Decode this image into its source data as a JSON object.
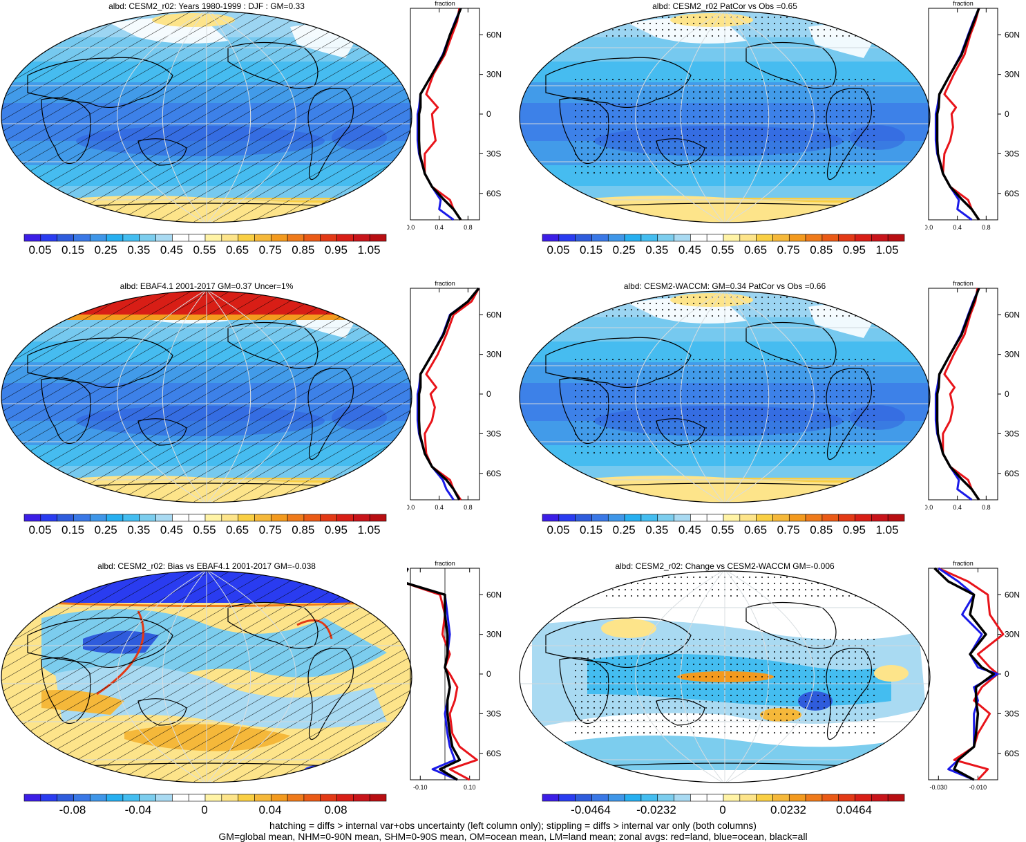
{
  "panels": [
    {
      "title": "albd: CESM2_r02: Years 1980-1999 : DJF : GM=0.33",
      "kind": "mean",
      "hatch": "lines",
      "redCap": false,
      "blueCap": false
    },
    {
      "title": "albd: CESM2_r02 PatCor vs Obs =0.65",
      "kind": "mean",
      "hatch": "dots",
      "redCap": false,
      "blueCap": false
    },
    {
      "title": "albd: EBAF4.1 2001-2017 GM=0.37 Uncer=1%",
      "kind": "mean",
      "hatch": "lines",
      "redCap": true,
      "blueCap": false
    },
    {
      "title": "albd: CESM2-WACCM: GM=0.34 PatCor vs Obs =0.66",
      "kind": "mean",
      "hatch": "dots",
      "redCap": false,
      "blueCap": false
    },
    {
      "title": "albd: CESM2_r02: Bias vs EBAF4.1 2001-2017 GM=-0.038",
      "kind": "diff",
      "hatch": "lines",
      "redCap": false,
      "blueCap": true
    },
    {
      "title": "albd: CESM2_r02: Change vs CESM2-WACCM GM=-0.006",
      "kind": "diff",
      "hatch": "dots",
      "redCap": false,
      "blueCap": false
    }
  ],
  "colorbars": {
    "mean_labels": [
      "0.05",
      "0.15",
      "0.25",
      "0.35",
      "0.45",
      "0.55",
      "0.65",
      "0.75",
      "0.85",
      "0.95",
      "1.05"
    ],
    "bias_labels": [
      "-0.08",
      "-0.04",
      "0",
      "0.04",
      "0.08"
    ],
    "change_labels": [
      "-0.0464",
      "-0.0232",
      "0",
      "0.0232",
      "0.0464"
    ],
    "colors": [
      "#3c1ee6",
      "#2a3cf0",
      "#2f5cdc",
      "#3a78e6",
      "#3f96e8",
      "#27aff0",
      "#44bdf0",
      "#7ccdee",
      "#a9daf2",
      "#ffffff",
      "#ffffff",
      "#fff3a6",
      "#fde48a",
      "#f9cf44",
      "#f5b83a",
      "#f39a1e",
      "#ef7a1a",
      "#ea5a16",
      "#e33a16",
      "#d81e16",
      "#c8141a",
      "#b80e12"
    ]
  },
  "zonal_axes": {
    "title": "fraction",
    "lat_labels": [
      "60N",
      "30N",
      "0",
      "30S",
      "60S"
    ],
    "mean_x": [
      "0.0",
      "0.4",
      "0.8"
    ],
    "bias_x": [
      "-0.10",
      "0.10"
    ],
    "change_x": [
      "-0.030",
      "-0.010"
    ]
  },
  "legend": {
    "land": "#e8141a",
    "ocean": "#1a1ae8",
    "all": "#000000"
  },
  "footer": {
    "line1": "hatching = diffs > internal var+obs uncertainty (left column only); stippling = diffs > internal var only (both columns)",
    "line2": "GM=global mean, NHM=0-90N mean, SHM=0-90S mean, OM=ocean mean, LM=land mean; zonal avgs: red=land, blue=ocean, black=all"
  },
  "chart_data": [
    {
      "type": "heatmap",
      "title": "albd: CESM2_r02: Years 1980-1999 : DJF : GM=0.33",
      "xlabel": "",
      "ylabel": "",
      "colorbar_ticks": [
        0.05,
        0.15,
        0.25,
        0.35,
        0.45,
        0.55,
        0.65,
        0.75,
        0.85,
        0.95,
        1.05
      ],
      "zonal_profile": {
        "lat": [
          80,
          70,
          60,
          45,
          30,
          15,
          5,
          0,
          -10,
          -20,
          -30,
          -45,
          -55,
          -65,
          -72,
          -80
        ],
        "land": [
          0.68,
          0.65,
          0.58,
          0.48,
          0.32,
          0.22,
          0.38,
          0.3,
          0.32,
          0.35,
          0.2,
          0.2,
          0.3,
          0.55,
          0.6,
          0.7
        ],
        "ocean": [
          0.7,
          0.62,
          0.55,
          0.45,
          0.3,
          0.14,
          0.12,
          0.1,
          0.1,
          0.1,
          0.12,
          0.2,
          0.3,
          0.42,
          0.4,
          0.6
        ],
        "all": [
          0.7,
          0.63,
          0.55,
          0.46,
          0.3,
          0.14,
          0.14,
          0.12,
          0.12,
          0.12,
          0.13,
          0.2,
          0.3,
          0.47,
          0.6,
          0.7
        ],
        "xlim": [
          0,
          0.8
        ]
      }
    },
    {
      "type": "heatmap",
      "title": "albd: CESM2_r02 PatCor vs Obs =0.65",
      "xlabel": "",
      "ylabel": "",
      "colorbar_ticks": [
        0.05,
        0.15,
        0.25,
        0.35,
        0.45,
        0.55,
        0.65,
        0.75,
        0.85,
        0.95,
        1.05
      ],
      "zonal_profile": {
        "lat": [
          80,
          70,
          60,
          45,
          30,
          15,
          5,
          0,
          -10,
          -20,
          -30,
          -45,
          -55,
          -65,
          -72,
          -80
        ],
        "land": [
          0.7,
          0.65,
          0.58,
          0.5,
          0.35,
          0.22,
          0.38,
          0.32,
          0.34,
          0.3,
          0.22,
          0.2,
          0.3,
          0.55,
          0.6,
          0.7
        ],
        "ocean": [
          0.7,
          0.62,
          0.55,
          0.45,
          0.3,
          0.15,
          0.12,
          0.1,
          0.1,
          0.1,
          0.12,
          0.2,
          0.3,
          0.42,
          0.4,
          0.6
        ],
        "all": [
          0.7,
          0.63,
          0.56,
          0.46,
          0.3,
          0.15,
          0.14,
          0.12,
          0.12,
          0.12,
          0.13,
          0.2,
          0.3,
          0.47,
          0.6,
          0.7
        ],
        "xlim": [
          0,
          0.8
        ]
      }
    },
    {
      "type": "heatmap",
      "title": "albd: EBAF4.1 2001-2017 GM=0.37 Uncer=1%",
      "xlabel": "",
      "ylabel": "",
      "colorbar_ticks": [
        0.05,
        0.15,
        0.25,
        0.35,
        0.45,
        0.55,
        0.65,
        0.75,
        0.85,
        0.95,
        1.05
      ],
      "zonal_profile": {
        "lat": [
          80,
          70,
          60,
          45,
          30,
          15,
          5,
          0,
          -10,
          -20,
          -30,
          -45,
          -55,
          -65,
          -72,
          -80
        ],
        "land": [
          0.95,
          0.85,
          0.6,
          0.5,
          0.38,
          0.22,
          0.36,
          0.28,
          0.34,
          0.3,
          0.2,
          0.22,
          0.3,
          0.55,
          0.6,
          0.7
        ],
        "ocean": [
          0.95,
          0.8,
          0.55,
          0.45,
          0.3,
          0.14,
          0.12,
          0.1,
          0.1,
          0.1,
          0.12,
          0.2,
          0.3,
          0.45,
          0.5,
          0.6
        ],
        "all": [
          0.95,
          0.8,
          0.56,
          0.46,
          0.3,
          0.14,
          0.14,
          0.12,
          0.12,
          0.12,
          0.13,
          0.2,
          0.3,
          0.5,
          0.6,
          0.68
        ],
        "xlim": [
          0,
          0.8
        ]
      }
    },
    {
      "type": "heatmap",
      "title": "albd: CESM2-WACCM: GM=0.34 PatCor vs Obs =0.66",
      "xlabel": "",
      "ylabel": "",
      "colorbar_ticks": [
        0.05,
        0.15,
        0.25,
        0.35,
        0.45,
        0.55,
        0.65,
        0.75,
        0.85,
        0.95,
        1.05
      ],
      "zonal_profile": {
        "lat": [
          80,
          70,
          60,
          45,
          30,
          15,
          5,
          0,
          -10,
          -20,
          -30,
          -45,
          -55,
          -65,
          -72,
          -80
        ],
        "land": [
          0.68,
          0.65,
          0.58,
          0.5,
          0.35,
          0.22,
          0.36,
          0.3,
          0.34,
          0.3,
          0.2,
          0.2,
          0.3,
          0.55,
          0.6,
          0.7
        ],
        "ocean": [
          0.7,
          0.62,
          0.55,
          0.45,
          0.3,
          0.15,
          0.12,
          0.1,
          0.1,
          0.1,
          0.12,
          0.2,
          0.3,
          0.42,
          0.4,
          0.6
        ],
        "all": [
          0.7,
          0.63,
          0.56,
          0.46,
          0.3,
          0.15,
          0.14,
          0.12,
          0.12,
          0.12,
          0.13,
          0.2,
          0.3,
          0.47,
          0.6,
          0.7
        ],
        "xlim": [
          0,
          0.8
        ]
      }
    },
    {
      "type": "heatmap",
      "title": "albd: CESM2_r02: Bias vs EBAF4.1 2001-2017 GM=-0.038",
      "xlabel": "",
      "ylabel": "",
      "colorbar_ticks": [
        -0.08,
        -0.04,
        0,
        0.04,
        0.08
      ],
      "zonal_profile": {
        "lat": [
          80,
          70,
          60,
          45,
          30,
          15,
          5,
          0,
          -10,
          -20,
          -30,
          -45,
          -55,
          -65,
          -72,
          -80
        ],
        "land": [
          -0.15,
          -0.18,
          -0.02,
          0.0,
          -0.01,
          0.02,
          0.0,
          0.02,
          0.05,
          0.04,
          0.02,
          0.03,
          0.06,
          0.13,
          0.02,
          0.1
        ],
        "ocean": [
          -0.15,
          -0.18,
          0.0,
          0.01,
          0.02,
          0.01,
          0.0,
          0.01,
          0.02,
          0.01,
          0.0,
          0.01,
          0.02,
          0.04,
          -0.05,
          0.05
        ],
        "all": [
          -0.15,
          -0.18,
          0.0,
          0.0,
          0.01,
          0.01,
          0.0,
          0.01,
          0.02,
          0.01,
          0.01,
          0.02,
          0.03,
          0.06,
          -0.02,
          0.05
        ],
        "xlim": [
          -0.15,
          0.15
        ]
      }
    },
    {
      "type": "heatmap",
      "title": "albd: CESM2_r02: Change vs CESM2-WACCM GM=-0.006",
      "xlabel": "",
      "ylabel": "",
      "colorbar_ticks": [
        -0.0464,
        -0.0232,
        0,
        0.0232,
        0.0464
      ],
      "zonal_profile": {
        "lat": [
          80,
          70,
          60,
          45,
          30,
          15,
          5,
          0,
          -10,
          -20,
          -30,
          -45,
          -55,
          -65,
          -72,
          -80
        ],
        "land": [
          -0.03,
          -0.015,
          -0.005,
          -0.004,
          0.006,
          -0.01,
          -0.004,
          0.0,
          -0.008,
          -0.012,
          -0.004,
          -0.01,
          -0.012,
          -0.022,
          -0.005,
          -0.01
        ],
        "ocean": [
          -0.03,
          -0.02,
          -0.012,
          -0.018,
          -0.008,
          -0.014,
          -0.01,
          0.0,
          -0.012,
          -0.01,
          -0.012,
          -0.012,
          -0.012,
          -0.02,
          -0.025,
          -0.012
        ],
        "all": [
          -0.032,
          -0.025,
          -0.012,
          -0.014,
          -0.006,
          -0.014,
          -0.008,
          -0.002,
          -0.011,
          -0.011,
          -0.01,
          -0.011,
          -0.012,
          -0.02,
          -0.022,
          -0.012
        ],
        "xlim": [
          -0.035,
          -0.002
        ]
      }
    }
  ]
}
